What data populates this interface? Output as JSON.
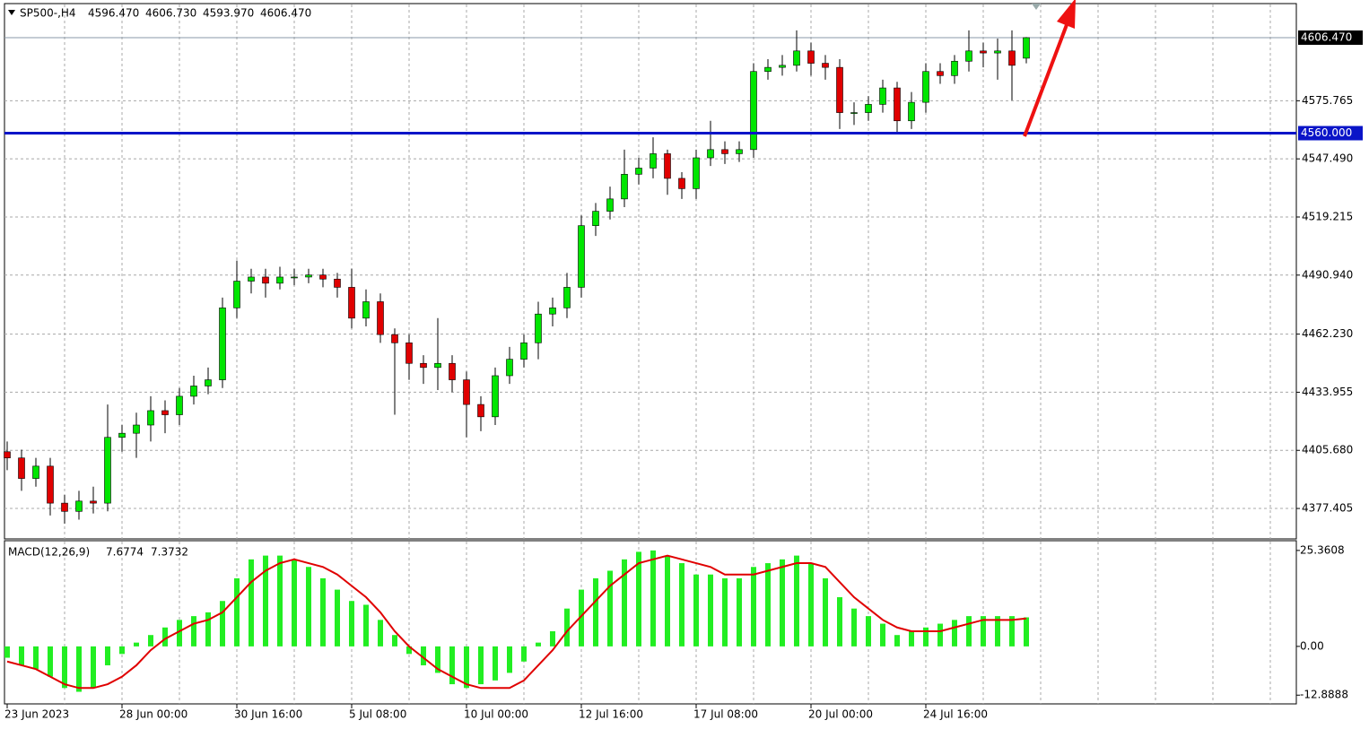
{
  "chart_data": [
    {
      "type": "candlestick",
      "symbol": "SP500-,H4",
      "ohlc_labels": [
        "4596.470",
        "4606.730",
        "4593.970",
        "4606.470"
      ],
      "x_labels": [
        {
          "value": 0,
          "label": "23 Jun 2023"
        },
        {
          "value": 8,
          "label": "28 Jun 00:00"
        },
        {
          "value": 16,
          "label": "30 Jun 16:00"
        },
        {
          "value": 24,
          "label": "5 Jul 08:00"
        },
        {
          "value": 32,
          "label": "10 Jul 00:00"
        },
        {
          "value": 40,
          "label": "12 Jul 16:00"
        },
        {
          "value": 48,
          "label": "17 Jul 08:00"
        },
        {
          "value": 56,
          "label": "20 Jul 00:00"
        },
        {
          "value": 64,
          "label": "24 Jul 16:00"
        }
      ],
      "open": [
        4405,
        4402,
        4392,
        4398,
        4380,
        4376,
        4381,
        4380,
        4412,
        4414,
        4418,
        4425,
        4423,
        4432,
        4437,
        4440,
        4475,
        4488,
        4490,
        4487,
        4490,
        4490,
        4491,
        4489,
        4485,
        4470,
        4478,
        4462,
        4458,
        4448,
        4446,
        4448,
        4440,
        4428,
        4422,
        4442,
        4450,
        4458,
        4472,
        4475,
        4485,
        4515,
        4522,
        4528,
        4540,
        4543,
        4550,
        4538,
        4533,
        4548,
        4552,
        4550,
        4552,
        4590,
        4592,
        4593,
        4600,
        4594,
        4592,
        4570,
        4570,
        4574,
        4582,
        4566,
        4575,
        4590,
        4588,
        4595,
        4600,
        4599,
        4600,
        4596.47
      ],
      "high": [
        4410,
        4406,
        4402,
        4402,
        4384,
        4386,
        4388,
        4428,
        4418,
        4424,
        4432,
        4430,
        4436,
        4442,
        4446,
        4480,
        4498,
        4494,
        4494,
        4495,
        4494,
        4494,
        4494,
        4492,
        4494,
        4484,
        4482,
        4465,
        4462,
        4452,
        4470,
        4452,
        4444,
        4432,
        4446,
        4456,
        4462,
        4478,
        4480,
        4492,
        4520,
        4526,
        4534,
        4552,
        4548,
        4558,
        4552,
        4541,
        4552,
        4566,
        4556,
        4556,
        4594,
        4596,
        4598,
        4610,
        4604,
        4598,
        4596,
        4575,
        4578,
        4586,
        4585,
        4580,
        4594,
        4594,
        4598,
        4610,
        4604,
        4606,
        4610,
        4606.73
      ],
      "low": [
        4396,
        4386,
        4388,
        4374,
        4370,
        4372,
        4375,
        4376,
        4405,
        4402,
        4410,
        4414,
        4418,
        4428,
        4433,
        4436,
        4470,
        4482,
        4480,
        4484,
        4486,
        4487,
        4485,
        4480,
        4465,
        4466,
        4458,
        4423,
        4440,
        4438,
        4435,
        4434,
        4412,
        4415,
        4418,
        4438,
        4446,
        4450,
        4466,
        4470,
        4480,
        4510,
        4518,
        4524,
        4535,
        4538,
        4530,
        4528,
        4528,
        4544,
        4545,
        4546,
        4548,
        4586,
        4588,
        4590,
        4588,
        4586,
        4562,
        4564,
        4566,
        4570,
        4560,
        4562,
        4570,
        4584,
        4584,
        4590,
        4592,
        4586,
        4576,
        4593.97
      ],
      "close": [
        4402,
        4392,
        4398,
        4380,
        4376,
        4381,
        4380,
        4412,
        4414,
        4418,
        4425,
        4423,
        4432,
        4437,
        4440,
        4475,
        4488,
        4490,
        4487,
        4490,
        4490,
        4491,
        4489,
        4485,
        4470,
        4478,
        4462,
        4458,
        4448,
        4446,
        4448,
        4440,
        4428,
        4422,
        4442,
        4450,
        4458,
        4472,
        4475,
        4485,
        4515,
        4522,
        4528,
        4540,
        4543,
        4550,
        4538,
        4533,
        4548,
        4552,
        4550,
        4552,
        4590,
        4592,
        4593,
        4600,
        4594,
        4592,
        4570,
        4570,
        4574,
        4582,
        4566,
        4575,
        4590,
        4588,
        4595,
        4600,
        4599,
        4600,
        4593,
        4606.47
      ],
      "up_color": "#00e600",
      "down_color": "#e00000",
      "ylim": [
        4362.6,
        4622.6
      ],
      "yticks": [
        {
          "value": 4377.405,
          "label": "4377.405"
        },
        {
          "value": 4405.68,
          "label": "4405.680"
        },
        {
          "value": 4433.955,
          "label": "4433.955"
        },
        {
          "value": 4462.23,
          "label": "4462.230"
        },
        {
          "value": 4490.94,
          "label": "4490.940"
        },
        {
          "value": 4519.215,
          "label": "4519.215"
        },
        {
          "value": 4547.49,
          "label": "4547.490"
        },
        {
          "value": 4575.765,
          "label": "4575.765"
        }
      ],
      "price_line": {
        "value": 4606.47,
        "label": "4606.470"
      },
      "level_line": {
        "value": 4560,
        "label": "4560.000",
        "color": "#0a14c8"
      },
      "grid": true
    },
    {
      "type": "macd",
      "indicator": "MACD(12,26,9)",
      "value_labels": [
        "7.6774",
        "7.3732"
      ],
      "series": [
        {
          "name": "MACD",
          "color": "#22ee22",
          "values": [
            -3,
            -5,
            -6,
            -8,
            -11,
            -12,
            -11,
            -5,
            -2,
            1,
            3,
            5,
            7,
            8,
            9,
            12,
            18,
            23,
            24,
            24,
            23,
            21,
            18,
            15,
            12,
            11,
            7,
            3,
            -2,
            -5,
            -7,
            -10,
            -11,
            -10,
            -9,
            -7,
            -4,
            1,
            4,
            10,
            15,
            18,
            20,
            23,
            25,
            25.3608,
            24,
            22,
            19,
            19,
            18,
            18,
            21,
            22,
            23,
            24,
            22,
            18,
            13,
            10,
            8,
            6,
            3,
            4,
            5,
            6,
            7,
            8,
            8,
            8,
            8,
            7.6774
          ]
        },
        {
          "name": "Signal",
          "color": "#e00000",
          "values": [
            -4,
            -5,
            -6,
            -8,
            -10,
            -11,
            -11,
            -10,
            -8,
            -5,
            -1,
            2,
            4,
            6,
            7,
            9,
            13,
            17,
            20,
            22,
            23,
            22,
            21,
            19,
            16,
            13,
            9,
            4,
            0,
            -3,
            -6,
            -8,
            -10,
            -11,
            -11,
            -11,
            -9,
            -5,
            -1,
            4,
            8,
            12,
            16,
            19,
            22,
            23,
            24,
            23,
            22,
            21,
            19,
            19,
            19,
            20,
            21,
            22,
            22,
            21,
            17,
            13,
            10,
            7,
            5,
            4,
            4,
            4,
            5,
            6,
            7,
            7,
            7,
            7.3732
          ]
        }
      ],
      "ylim": [
        -15.2,
        27.7
      ],
      "yticks": [
        {
          "value": 25.3608,
          "label": "25.3608"
        },
        {
          "value": 0,
          "label": "0.00"
        },
        {
          "value": -12.8888,
          "label": "-12.8888"
        }
      ],
      "grid": true
    }
  ]
}
